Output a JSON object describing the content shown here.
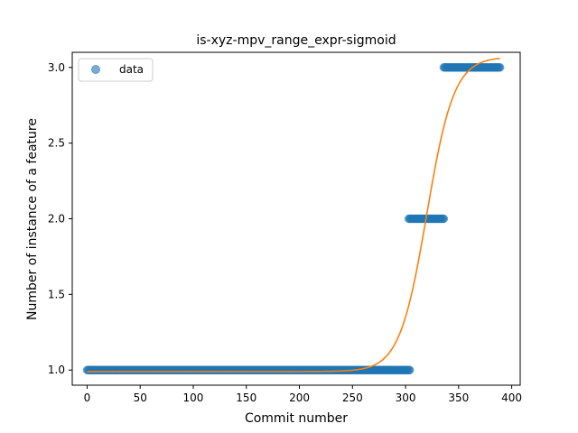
{
  "chart_data": {
    "type": "scatter",
    "title": "is-xyz-mpv_range_expr-sigmoid",
    "xlabel": "Commit number",
    "ylabel": "Number of instance of a feature",
    "xlim": [
      -14,
      408
    ],
    "ylim": [
      0.9,
      3.1
    ],
    "xticks": [
      0,
      50,
      100,
      150,
      200,
      250,
      300,
      350,
      400
    ],
    "yticks": [
      1.0,
      1.5,
      2.0,
      2.5,
      3.0
    ],
    "xtick_labels": [
      "0",
      "50",
      "100",
      "150",
      "200",
      "250",
      "300",
      "350",
      "400"
    ],
    "ytick_labels": [
      "1.0",
      "1.5",
      "2.0",
      "2.5",
      "3.0"
    ],
    "grid": false,
    "legend": {
      "position": "top-left",
      "entries": [
        {
          "label": "data",
          "marker": "circle",
          "color": "#1f77b4"
        }
      ]
    },
    "series": [
      {
        "name": "data",
        "kind": "scatter",
        "color": "#1f77b4",
        "segments": [
          {
            "x_start": 0,
            "x_end": 304,
            "y": 1.0
          },
          {
            "x_start": 303,
            "x_end": 336,
            "y": 2.0
          },
          {
            "x_start": 336,
            "x_end": 389,
            "y": 3.0
          }
        ]
      },
      {
        "kind": "line",
        "color": "#ff7f0e",
        "model": "sigmoid",
        "params": {
          "L": 2.08,
          "x0": 320,
          "k": 0.078,
          "b": 0.99
        },
        "x_range": [
          0,
          389
        ]
      }
    ]
  }
}
